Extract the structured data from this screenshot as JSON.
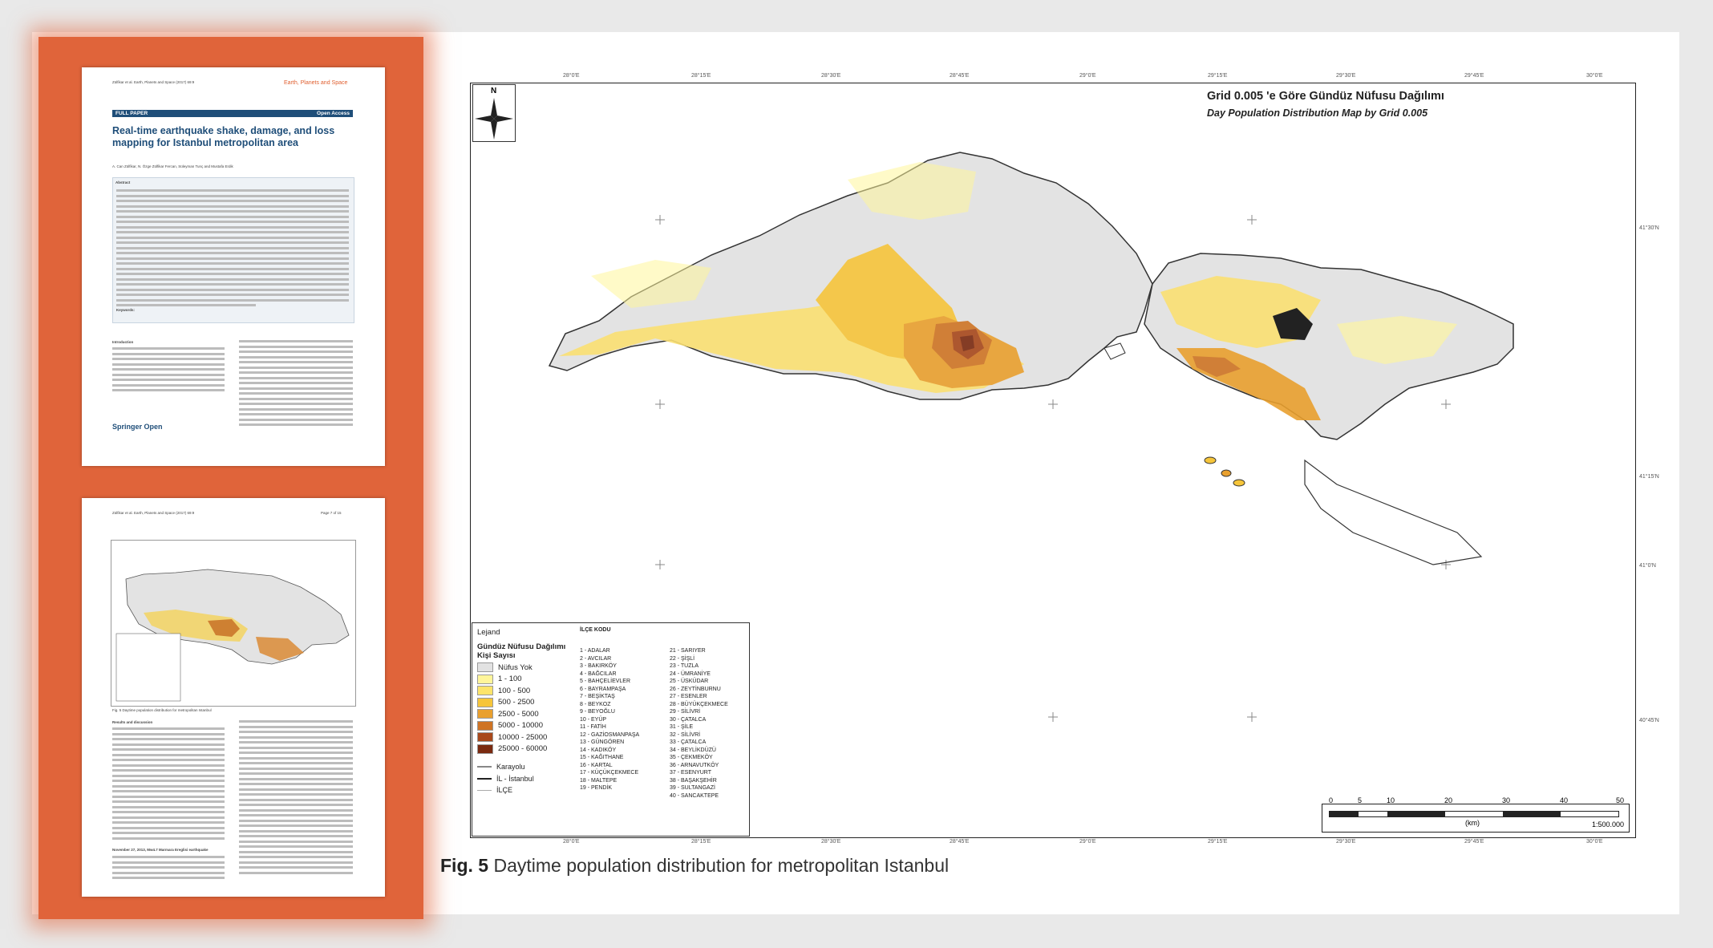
{
  "page1": {
    "journal_ref": "Zülfikar et al. Earth, Planets and Space (2017) 69:9",
    "publisher": "Earth, Planets and Space",
    "full_paper": "FULL PAPER",
    "open_access": "Open Access",
    "title": "Real-time earthquake shake, damage, and loss mapping for Istanbul metropolitan area",
    "authors": "A. Can Zülfikar, N. Özge Zülfikar Fercan, Süleyman Tunç and Mustafa Erdik",
    "abstract_heading": "Abstract",
    "keywords_label": "Keywords:",
    "intro_heading": "Introduction",
    "springer": "Springer Open"
  },
  "page2": {
    "journal_ref": "Zülfikar et al. Earth, Planets and Space (2017) 69:9",
    "page_num": "Page 7 of 15",
    "fig_caption": "Fig. 5 Daytime population distribution for metropolitan Istanbul",
    "results_heading": "Results and discussion",
    "nov_heading": "November 27, 2013, Mw4.7 Marmara Ereglisi earthquake"
  },
  "map": {
    "title": "Grid 0.005 'e Göre Gündüz Nüfusu Dağılımı",
    "subtitle": "Day Population Distribution Map by Grid 0.005",
    "north": "N",
    "legend": {
      "title": "Lejand",
      "pop_heading": "Gündüz Nüfusu Dağılımı",
      "count_heading": "Kişi Sayısı",
      "classes": [
        {
          "label": "Nüfus Yok",
          "color": "#e2e2e2"
        },
        {
          "label": "1 - 100",
          "color": "#fff59a"
        },
        {
          "label": "100 - 500",
          "color": "#fde46a"
        },
        {
          "label": "500 - 2500",
          "color": "#f6c53a"
        },
        {
          "label": "2500 - 5000",
          "color": "#e9a02e"
        },
        {
          "label": "5000 - 10000",
          "color": "#cf7424"
        },
        {
          "label": "10000 - 25000",
          "color": "#a8481b"
        },
        {
          "label": "25000 - 60000",
          "color": "#7a2a10"
        }
      ],
      "lines": [
        "Karayolu",
        "İL - İstanbul",
        "İLÇE"
      ],
      "ilce_heading": "İLÇE KODU",
      "ilce_col1": [
        "1 - ADALAR",
        "2 - AVCILAR",
        "3 - BAKIRKÖY",
        "4 - BAĞCILAR",
        "5 - BAHÇELİEVLER",
        "6 - BAYRAMPAŞA",
        "7 - BEŞİKTAŞ",
        "8 - BEYKOZ",
        "9 - BEYOĞLU",
        "10 - EYÜP",
        "11 - FATİH",
        "12 - GAZİOSMANPAŞA",
        "13 - GÜNGÖREN",
        "14 - KADIKÖY",
        "15 - KAĞITHANE",
        "16 - KARTAL",
        "17 - KÜÇÜKÇEKMECE",
        "18 - MALTEPE",
        "19 - PENDİK"
      ],
      "ilce_col2": [
        "21 - SARIYER",
        "22 - ŞİŞLİ",
        "23 - TUZLA",
        "24 - ÜMRANİYE",
        "25 - ÜSKÜDAR",
        "26 - ZEYTİNBURNU",
        "27 - ESENLER",
        "28 - BÜYÜKÇEKMECE",
        "29 - SİLİVRİ",
        "30 - ÇATALCA",
        "31 - ŞİLE",
        "32 - SİLİVRİ",
        "33 - ÇATALCA",
        "34 - BEYLİKDÜZÜ",
        "35 - ÇEKMEKÖY",
        "36 - ARNAVUTKÖY",
        "37 - ESENYURT",
        "38 - BAŞAKŞEHİR",
        "39 - SULTANGAZİ",
        "40 - SANCAKTEPE"
      ]
    },
    "scale": {
      "ticks": [
        "0",
        "5",
        "10",
        "20",
        "30",
        "40",
        "50"
      ],
      "unit": "(km)",
      "ratio": "1:500.000"
    },
    "lon_ticks": [
      "28°0'E",
      "28°15'E",
      "28°30'E",
      "28°45'E",
      "29°0'E",
      "29°15'E",
      "29°30'E",
      "29°45'E",
      "30°0'E"
    ],
    "lat_ticks": [
      "41°30'N",
      "41°15'N",
      "41°0'N",
      "40°45'N"
    ]
  },
  "caption": {
    "label": "Fig. 5",
    "text": "Daytime population distribution for metropolitan Istanbul"
  }
}
